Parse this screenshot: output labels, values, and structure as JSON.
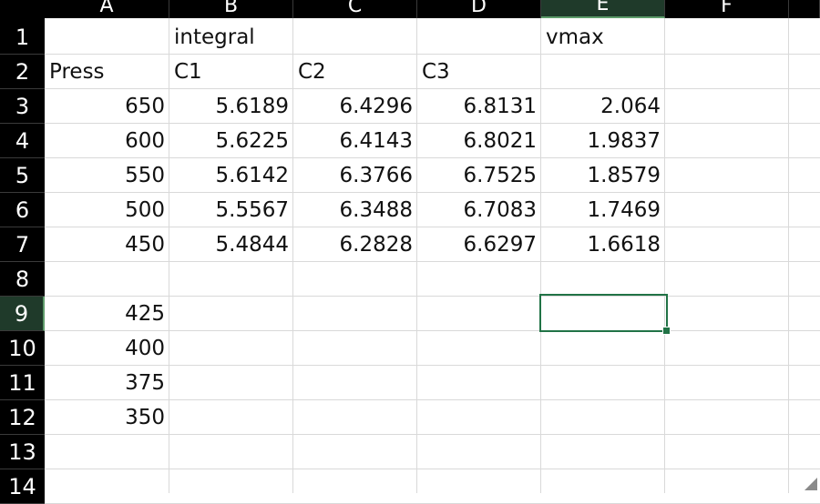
{
  "columns": [
    "A",
    "B",
    "C",
    "D",
    "E",
    "F"
  ],
  "rows": [
    "1",
    "2",
    "3",
    "4",
    "5",
    "6",
    "7",
    "8",
    "9",
    "10",
    "11",
    "12",
    "13",
    "14"
  ],
  "selected": {
    "column": "E",
    "row": "9"
  },
  "cells": {
    "B1": "integral",
    "E1": "vmax",
    "A2": "Press",
    "B2": "C1",
    "C2": "C2",
    "D2": "C3",
    "A3": "650",
    "B3": "5.6189",
    "C3": "6.4296",
    "D3": "6.8131",
    "E3": "2.064",
    "A4": "600",
    "B4": "5.6225",
    "C4": "6.4143",
    "D4": "6.8021",
    "E4": "1.9837",
    "A5": "550",
    "B5": "5.6142",
    "C5": "6.3766",
    "D5": "6.7525",
    "E5": "1.8579",
    "A6": "500",
    "B6": "5.5567",
    "C6": "6.3488",
    "D6": "6.7083",
    "E6": "1.7469",
    "A7": "450",
    "B7": "5.4844",
    "C7": "6.2828",
    "D7": "6.6297",
    "E7": "1.6618",
    "A9": "425",
    "A10": "400",
    "A11": "375",
    "A12": "350"
  },
  "colors": {
    "selection": "#217346",
    "header_bg": "#000000",
    "gridline": "#d9d9d9"
  }
}
